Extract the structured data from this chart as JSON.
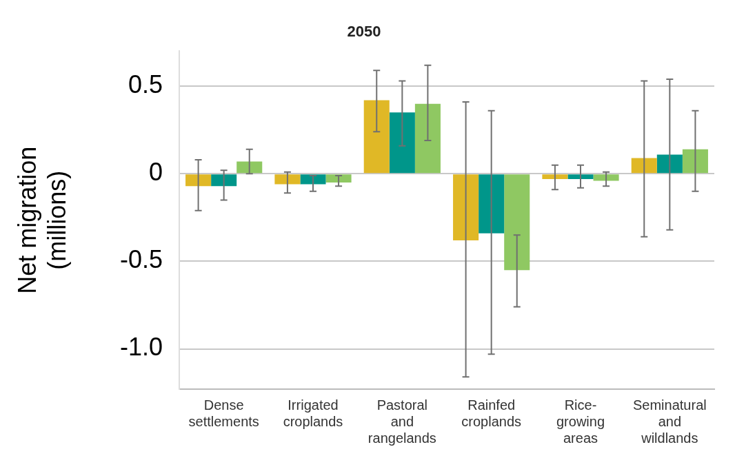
{
  "chart_data": {
    "type": "bar",
    "title": "2050",
    "ylabel": "Net migration\n(millions)",
    "categories": [
      "Dense settlements",
      "Irrigated croplands",
      "Pastoral and rangelands",
      "Rainfed croplands",
      "Rice-growing areas",
      "Seminatural and wildlands"
    ],
    "series": [
      {
        "color": "#e0b826",
        "values": [
          -0.07,
          -0.06,
          0.42,
          -0.38,
          -0.03,
          0.09
        ],
        "errors": [
          [
            -0.21,
            0.08
          ],
          [
            -0.11,
            0.01
          ],
          [
            0.24,
            0.59
          ],
          [
            -1.16,
            0.41
          ],
          [
            -0.09,
            0.05
          ],
          [
            -0.36,
            0.53
          ]
        ]
      },
      {
        "color": "#00968a",
        "values": [
          -0.07,
          -0.06,
          0.35,
          -0.34,
          -0.03,
          0.11
        ],
        "errors": [
          [
            -0.15,
            0.02
          ],
          [
            -0.1,
            -0.01
          ],
          [
            0.16,
            0.53
          ],
          [
            -1.03,
            0.36
          ],
          [
            -0.08,
            0.05
          ],
          [
            -0.32,
            0.54
          ]
        ]
      },
      {
        "color": "#8fc862",
        "values": [
          0.07,
          -0.05,
          0.4,
          -0.55,
          -0.04,
          0.14
        ],
        "errors": [
          [
            0,
            0.14
          ],
          [
            -0.07,
            -0.01
          ],
          [
            0.19,
            0.62
          ],
          [
            -0.76,
            -0.35
          ],
          [
            -0.07,
            0.01
          ],
          [
            -0.1,
            0.36
          ]
        ]
      }
    ],
    "ylim": [
      -1.23,
      0.7
    ],
    "yticks": [
      {
        "value": -1,
        "label": "-1.0"
      },
      -0.5,
      0,
      0.5
    ],
    "grid": "y",
    "legend": false
  }
}
